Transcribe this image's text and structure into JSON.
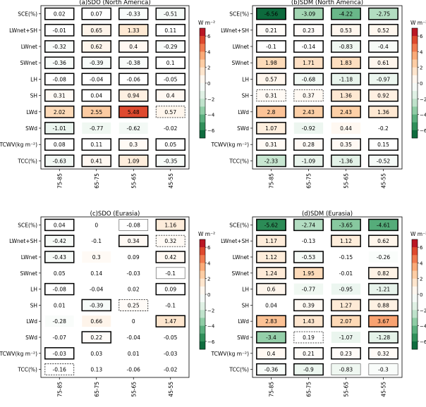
{
  "chart_data": [
    {
      "type": "heatmap",
      "title": "(a)SDO (North America)",
      "row_labels": [
        "SCE(%)",
        "LWnet+SH",
        "LWnet",
        "SWnet",
        "LH",
        "SH",
        "LWd",
        "SWd",
        "TCWV(kg m⁻²)",
        "TCC(%)"
      ],
      "col_labels": [
        "75-85",
        "65-75",
        "55-65",
        "45-55"
      ],
      "values": [
        [
          0.02,
          0.07,
          -0.33,
          -0.51
        ],
        [
          -0.01,
          0.65,
          1.33,
          0.11
        ],
        [
          -0.32,
          0.62,
          0.4,
          -0.29
        ],
        [
          -0.36,
          -0.39,
          -0.38,
          0.1
        ],
        [
          -0.08,
          -0.04,
          -0.06,
          -0.05
        ],
        [
          0.31,
          0.04,
          0.94,
          0.4
        ],
        [
          2.02,
          2.55,
          5.48,
          0.57
        ],
        [
          -1.01,
          -0.77,
          -0.62,
          -0.02
        ],
        [
          0.08,
          0.11,
          0.3,
          0.05
        ],
        [
          -0.63,
          0.41,
          1.09,
          -0.35
        ]
      ],
      "cell_borders": [
        [
          "solid",
          "solid",
          "solid",
          "solid"
        ],
        [
          "solid",
          "solid",
          "solid",
          "solid"
        ],
        [
          "solid",
          "solid",
          "solid",
          "solid"
        ],
        [
          "solid",
          "solid",
          "solid",
          "solid"
        ],
        [
          "solid",
          "solid",
          "solid",
          "solid"
        ],
        [
          "solid",
          "solid",
          "solid",
          "solid"
        ],
        [
          "solid",
          "solid",
          "solid",
          "dashed"
        ],
        [
          "solid",
          "none",
          "none",
          "none"
        ],
        [
          "solid",
          "solid",
          "solid",
          "solid"
        ],
        [
          "solid",
          "solid",
          "solid",
          "solid"
        ]
      ],
      "colorbar": {
        "label": "W m⁻²",
        "ticks": [
          6,
          4,
          2,
          0,
          -2,
          -4,
          -6
        ],
        "range": [
          -7,
          7
        ]
      }
    },
    {
      "type": "heatmap",
      "title": "(b)SDM (North America)",
      "row_labels": [
        "SCE(%)",
        "LWnet+SH",
        "LWnet",
        "SWnet",
        "LH",
        "SH",
        "LWd",
        "SWd",
        "TCWV(kg m⁻²)",
        "TCC(%)"
      ],
      "col_labels": [
        "75-85",
        "65-75",
        "55-65",
        "45-55"
      ],
      "values": [
        [
          -6.56,
          -3.09,
          -4.22,
          -2.75
        ],
        [
          0.21,
          0.23,
          0.53,
          0.52
        ],
        [
          -0.1,
          -0.14,
          -0.83,
          -0.4
        ],
        [
          1.98,
          1.71,
          1.83,
          0.61
        ],
        [
          0.57,
          -0.68,
          -1.18,
          -0.97
        ],
        [
          0.31,
          0.37,
          1.36,
          0.92
        ],
        [
          2.8,
          2.43,
          2.43,
          1.36
        ],
        [
          1.07,
          -0.92,
          0.44,
          -0.2
        ],
        [
          0.31,
          0.28,
          0.35,
          0.15
        ],
        [
          -2.33,
          -1.09,
          -1.36,
          -0.52
        ]
      ],
      "cell_borders": [
        [
          "solid",
          "solid",
          "solid",
          "solid"
        ],
        [
          "solid",
          "solid",
          "solid",
          "solid"
        ],
        [
          "solid",
          "solid",
          "solid",
          "solid"
        ],
        [
          "solid",
          "solid",
          "solid",
          "solid"
        ],
        [
          "solid",
          "solid",
          "solid",
          "solid"
        ],
        [
          "dashed",
          "dashed",
          "solid",
          "solid"
        ],
        [
          "solid",
          "solid",
          "solid",
          "solid"
        ],
        [
          "solid",
          "none",
          "none",
          "none"
        ],
        [
          "solid",
          "solid",
          "solid",
          "solid"
        ],
        [
          "solid",
          "solid",
          "solid",
          "solid"
        ]
      ],
      "colorbar": {
        "label": "W m⁻²",
        "ticks": [
          6,
          4,
          2,
          0,
          -2,
          -4,
          -6
        ],
        "range": [
          -7,
          7
        ]
      }
    },
    {
      "type": "heatmap",
      "title": "(c)SDO (Eurasia)",
      "row_labels": [
        "SCE(%)",
        "LWnet+SH",
        "LWnet",
        "SWnet",
        "LH",
        "SH",
        "LWd",
        "SWd",
        "TCWV(kg m⁻²)",
        "TCC(%)"
      ],
      "col_labels": [
        "75-85",
        "65-75",
        "55-65",
        "45-55"
      ],
      "values": [
        [
          0.04,
          0,
          -0.08,
          1.16
        ],
        [
          -0.42,
          -0.1,
          0.34,
          0.32
        ],
        [
          -0.43,
          0.3,
          0.09,
          0.42
        ],
        [
          0.05,
          0.14,
          -0.03,
          -0.1
        ],
        [
          -0.08,
          -0.04,
          0.02,
          0.09
        ],
        [
          0.01,
          -0.39,
          0.25,
          -0.1
        ],
        [
          -0.28,
          0.66,
          0,
          1.47
        ],
        [
          -0.07,
          0.22,
          -0.04,
          -0.05
        ],
        [
          -0.03,
          0.03,
          0.01,
          -0.03
        ],
        [
          -0.16,
          0.13,
          -0.06,
          -0.02
        ]
      ],
      "cell_borders": [
        [
          "solid",
          "none",
          "thin",
          "solid"
        ],
        [
          "solid",
          "none",
          "solid",
          "dashed"
        ],
        [
          "solid",
          "none",
          "none",
          "solid"
        ],
        [
          "none",
          "none",
          "none",
          "thin"
        ],
        [
          "solid",
          "none",
          "none",
          "solid"
        ],
        [
          "none",
          "solid",
          "dashed",
          "none"
        ],
        [
          "none",
          "none",
          "none",
          "solid"
        ],
        [
          "none",
          "solid",
          "none",
          "none"
        ],
        [
          "solid",
          "none",
          "none",
          "none"
        ],
        [
          "dashed",
          "none",
          "none",
          "none"
        ]
      ],
      "colorbar": {
        "label": "W m⁻²",
        "ticks": [
          6,
          4,
          2,
          0,
          -2,
          -4,
          -6
        ],
        "range": [
          -7,
          7
        ]
      }
    },
    {
      "type": "heatmap",
      "title": "(d)SDM (Eurasia)",
      "row_labels": [
        "SCE(%)",
        "LWnet+SH",
        "LWnet",
        "SWnet",
        "LH",
        "SH",
        "LWd",
        "SWd",
        "TCWV(kg m⁻²)",
        "TCC(%)"
      ],
      "col_labels": [
        "75-85",
        "65-75",
        "55-65",
        "45-55"
      ],
      "values": [
        [
          -5.62,
          -2.74,
          -3.65,
          -4.61
        ],
        [
          1.17,
          -0.13,
          1.12,
          0.62
        ],
        [
          1.12,
          -0.53,
          -0.15,
          -0.26
        ],
        [
          1.24,
          1.95,
          -0.01,
          0.82
        ],
        [
          0.6,
          -0.77,
          -0.95,
          -1.21
        ],
        [
          0.04,
          0.39,
          1.27,
          0.88
        ],
        [
          2.83,
          1.43,
          2.07,
          3.67
        ],
        [
          -3.4,
          0.19,
          -1.07,
          -1.28
        ],
        [
          0.4,
          0.21,
          0.23,
          0.32
        ],
        [
          -0.36,
          -0.9,
          -0.83,
          -0.3
        ]
      ],
      "cell_borders": [
        [
          "solid",
          "solid",
          "solid",
          "solid"
        ],
        [
          "solid",
          "none",
          "solid",
          "solid"
        ],
        [
          "solid",
          "solid",
          "none",
          "none"
        ],
        [
          "solid",
          "solid",
          "none",
          "solid"
        ],
        [
          "solid",
          "none",
          "none",
          "solid"
        ],
        [
          "none",
          "solid",
          "solid",
          "solid"
        ],
        [
          "solid",
          "solid",
          "solid",
          "solid"
        ],
        [
          "solid",
          "dashed",
          "none",
          "solid"
        ],
        [
          "solid",
          "solid",
          "solid",
          "solid"
        ],
        [
          "solid",
          "solid",
          "thin",
          "thin"
        ]
      ],
      "colorbar": {
        "label": "W m⁻²",
        "ticks": [
          6,
          4,
          2,
          0,
          -2,
          -4,
          -6
        ],
        "range": [
          -7,
          7
        ]
      }
    }
  ]
}
